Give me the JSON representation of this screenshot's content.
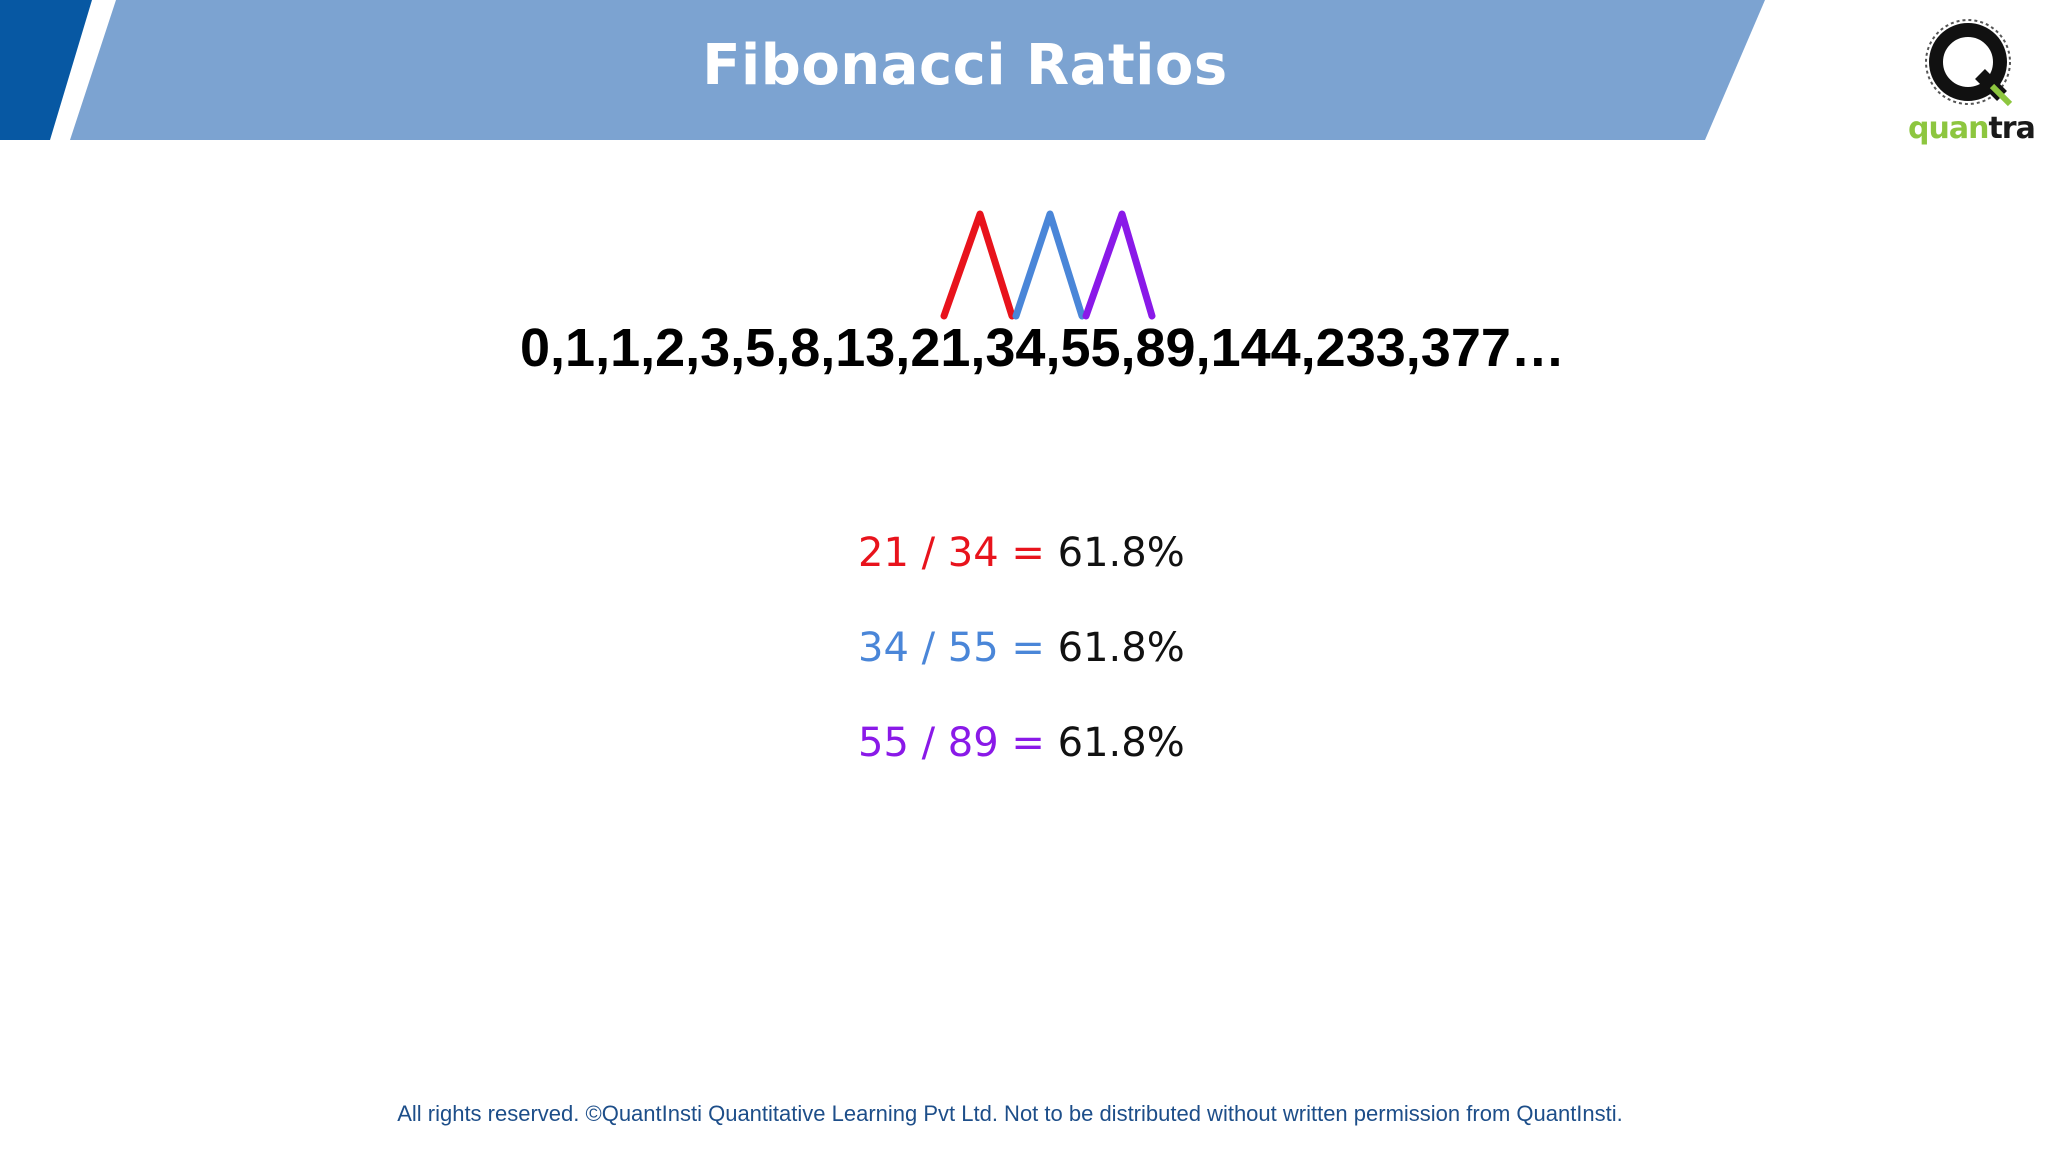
{
  "header": {
    "title": "Fibonacci Ratios"
  },
  "logo": {
    "wordmark_part1": "quan",
    "wordmark_part2": "tra",
    "icon": "quantra-q-logo-icon"
  },
  "sequence": {
    "text": "0,1,1,2,3,5,8,13,21,34,55,89,144,233,377…"
  },
  "ratios": [
    {
      "expression": "21 / 34 =",
      "result": "61.8%",
      "color": "#e8131c"
    },
    {
      "expression": "34 / 55 =",
      "result": "61.8%",
      "color": "#4a86d8"
    },
    {
      "expression": "55 / 89 =",
      "result": "61.8%",
      "color": "#8a19e8"
    }
  ],
  "footer": {
    "text": "All rights reserved. ©QuantInsti Quantitative Learning Pvt Ltd. Not to be distributed without written permission from QuantInsti."
  },
  "colors": {
    "header_light": "#7ca3d1",
    "header_dark": "#0758a3",
    "footer_text": "#1d4e89"
  }
}
